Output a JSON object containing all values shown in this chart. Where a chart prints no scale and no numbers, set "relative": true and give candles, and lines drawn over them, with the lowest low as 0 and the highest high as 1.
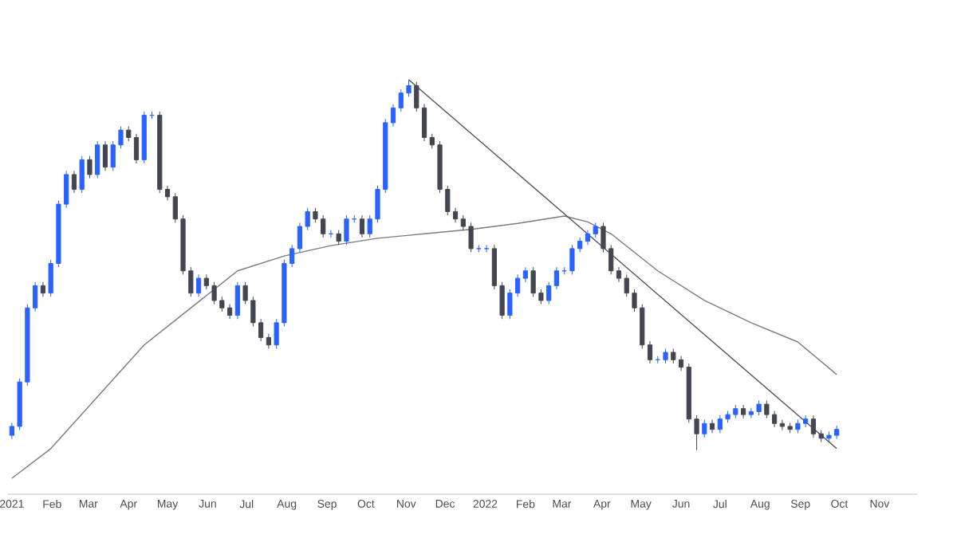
{
  "chart_data": {
    "type": "candlestick",
    "relative": true,
    "colors": [
      "#2962ff",
      "#2962ff",
      "#2962ff",
      "#2962ff",
      "#434651",
      "#2962ff",
      "#2962ff",
      "#2962ff",
      "#434651",
      "#2962ff",
      "#434651",
      "#2962ff",
      "#434651",
      "#2962ff",
      "#2962ff",
      "#434651",
      "#434651",
      "#2962ff",
      "#2962ff",
      "#434651",
      "#434651",
      "#434651",
      "#434651",
      "#434651",
      "#2962ff",
      "#434651",
      "#434651",
      "#434651",
      "#434651",
      "#2962ff",
      "#434651",
      "#434651",
      "#434651",
      "#434651",
      "#2962ff",
      "#2962ff",
      "#2962ff",
      "#2962ff",
      "#2962ff",
      "#434651",
      "#434651",
      "#2962ff",
      "#434651",
      "#2962ff",
      "#2962ff",
      "#434651",
      "#2962ff",
      "#2962ff",
      "#2962ff",
      "#2962ff",
      "#2962ff",
      "#2962ff",
      "#434651",
      "#434651",
      "#434651",
      "#434651",
      "#434651",
      "#434651",
      "#434651",
      "#434651",
      "#2962ff",
      "#2962ff",
      "#434651",
      "#434651",
      "#2962ff",
      "#2962ff",
      "#2962ff",
      "#434651",
      "#434651",
      "#2962ff",
      "#2962ff",
      "#2962ff",
      "#2962ff",
      "#2962ff",
      "#2962ff",
      "#2962ff",
      "#434651",
      "#434651",
      "#434651",
      "#434651",
      "#434651",
      "#434651",
      "#434651",
      "#2962ff",
      "#2962ff",
      "#434651",
      "#434651",
      "#434651",
      "#434651",
      "#2962ff",
      "#434651",
      "#2962ff",
      "#2962ff",
      "#2962ff",
      "#434651",
      "#2962ff",
      "#2962ff",
      "#434651",
      "#434651",
      "#434651",
      "#434651",
      "#2962ff",
      "#2962ff",
      "#434651",
      "#434651",
      "#2962ff",
      "#2962ff"
    ],
    "xlim": [
      "2020-12-29",
      "2022-11-30"
    ],
    "xticks": [
      {
        "value": "2021-01-01",
        "label": "2021"
      },
      {
        "value": "2021-02-01",
        "label": "Feb"
      },
      {
        "value": "2021-03-01",
        "label": "Mar"
      },
      {
        "value": "2021-04-01",
        "label": "Apr"
      },
      {
        "value": "2021-05-01",
        "label": "May"
      },
      {
        "value": "2021-06-01",
        "label": "Jun"
      },
      {
        "value": "2021-07-01",
        "label": "Jul"
      },
      {
        "value": "2021-08-01",
        "label": "Aug"
      },
      {
        "value": "2021-09-01",
        "label": "Sep"
      },
      {
        "value": "2021-10-01",
        "label": "Oct"
      },
      {
        "value": "2021-11-01",
        "label": "Nov"
      },
      {
        "value": "2021-12-01",
        "label": "Dec"
      },
      {
        "value": "2022-01-01",
        "label": "2022"
      },
      {
        "value": "2022-02-01",
        "label": "Feb"
      },
      {
        "value": "2022-03-01",
        "label": "Mar"
      },
      {
        "value": "2022-04-01",
        "label": "Apr"
      },
      {
        "value": "2022-05-01",
        "label": "May"
      },
      {
        "value": "2022-06-01",
        "label": "Jun"
      },
      {
        "value": "2022-07-01",
        "label": "Jul"
      },
      {
        "value": "2022-08-01",
        "label": "Aug"
      },
      {
        "value": "2022-09-01",
        "label": "Sep"
      },
      {
        "value": "2022-10-01",
        "label": "Oct"
      },
      {
        "value": "2022-11-01",
        "label": "Nov"
      }
    ],
    "x": [
      "2021-01-01",
      "2021-01-07",
      "2021-01-13",
      "2021-01-19",
      "2021-01-25",
      "2021-01-31",
      "2021-02-06",
      "2021-02-12",
      "2021-02-18",
      "2021-02-24",
      "2021-03-02",
      "2021-03-08",
      "2021-03-14",
      "2021-03-20",
      "2021-03-26",
      "2021-04-01",
      "2021-04-07",
      "2021-04-13",
      "2021-04-19",
      "2021-04-25",
      "2021-05-01",
      "2021-05-07",
      "2021-05-13",
      "2021-05-19",
      "2021-05-25",
      "2021-05-31",
      "2021-06-06",
      "2021-06-12",
      "2021-06-18",
      "2021-06-24",
      "2021-06-30",
      "2021-07-06",
      "2021-07-12",
      "2021-07-18",
      "2021-07-24",
      "2021-07-30",
      "2021-08-05",
      "2021-08-11",
      "2021-08-17",
      "2021-08-23",
      "2021-08-29",
      "2021-09-04",
      "2021-09-10",
      "2021-09-16",
      "2021-09-22",
      "2021-09-28",
      "2021-10-04",
      "2021-10-10",
      "2021-10-16",
      "2021-10-22",
      "2021-10-28",
      "2021-11-03",
      "2021-11-09",
      "2021-11-15",
      "2021-11-21",
      "2021-11-27",
      "2021-12-03",
      "2021-12-09",
      "2021-12-15",
      "2021-12-21",
      "2021-12-27",
      "2022-01-02",
      "2022-01-08",
      "2022-01-14",
      "2022-01-20",
      "2022-01-26",
      "2022-02-01",
      "2022-02-07",
      "2022-02-13",
      "2022-02-19",
      "2022-02-25",
      "2022-03-03",
      "2022-03-09",
      "2022-03-15",
      "2022-03-21",
      "2022-03-27",
      "2022-04-02",
      "2022-04-08",
      "2022-04-14",
      "2022-04-20",
      "2022-04-26",
      "2022-05-02",
      "2022-05-08",
      "2022-05-14",
      "2022-05-20",
      "2022-05-26",
      "2022-06-01",
      "2022-06-07",
      "2022-06-13",
      "2022-06-19",
      "2022-06-25",
      "2022-07-01",
      "2022-07-07",
      "2022-07-13",
      "2022-07-19",
      "2022-07-25",
      "2022-07-31",
      "2022-08-06",
      "2022-08-12",
      "2022-08-18",
      "2022-08-24",
      "2022-08-30",
      "2022-09-05",
      "2022-09-11",
      "2022-09-17",
      "2022-09-23",
      "2022-09-29"
    ],
    "ohlc": [
      [
        0.04,
        0.074,
        0.03,
        0.064
      ],
      [
        0.064,
        0.194,
        0.054,
        0.184
      ],
      [
        0.184,
        0.394,
        0.174,
        0.384
      ],
      [
        0.384,
        0.454,
        0.374,
        0.444
      ],
      [
        0.444,
        0.454,
        0.414,
        0.424
      ],
      [
        0.424,
        0.514,
        0.414,
        0.504
      ],
      [
        0.504,
        0.674,
        0.494,
        0.664
      ],
      [
        0.664,
        0.754,
        0.654,
        0.744
      ],
      [
        0.744,
        0.754,
        0.694,
        0.704
      ],
      [
        0.704,
        0.794,
        0.694,
        0.784
      ],
      [
        0.784,
        0.794,
        0.734,
        0.744
      ],
      [
        0.744,
        0.834,
        0.734,
        0.824
      ],
      [
        0.824,
        0.834,
        0.754,
        0.764
      ],
      [
        0.764,
        0.834,
        0.754,
        0.824
      ],
      [
        0.824,
        0.874,
        0.814,
        0.864
      ],
      [
        0.864,
        0.874,
        0.834,
        0.844
      ],
      [
        0.844,
        0.854,
        0.774,
        0.784
      ],
      [
        0.784,
        0.914,
        0.774,
        0.904
      ],
      [
        0.904,
        0.914,
        0.894,
        0.904
      ],
      [
        0.904,
        0.914,
        0.694,
        0.704
      ],
      [
        0.704,
        0.714,
        0.674,
        0.684
      ],
      [
        0.684,
        0.694,
        0.614,
        0.624
      ],
      [
        0.624,
        0.634,
        0.474,
        0.484
      ],
      [
        0.484,
        0.494,
        0.414,
        0.424
      ],
      [
        0.424,
        0.474,
        0.414,
        0.464
      ],
      [
        0.464,
        0.474,
        0.434,
        0.444
      ],
      [
        0.444,
        0.454,
        0.394,
        0.404
      ],
      [
        0.404,
        0.414,
        0.374,
        0.384
      ],
      [
        0.384,
        0.394,
        0.354,
        0.364
      ],
      [
        0.364,
        0.454,
        0.354,
        0.444
      ],
      [
        0.444,
        0.454,
        0.394,
        0.404
      ],
      [
        0.404,
        0.414,
        0.334,
        0.344
      ],
      [
        0.344,
        0.354,
        0.294,
        0.304
      ],
      [
        0.304,
        0.314,
        0.274,
        0.284
      ],
      [
        0.284,
        0.354,
        0.274,
        0.344
      ],
      [
        0.344,
        0.514,
        0.334,
        0.504
      ],
      [
        0.504,
        0.554,
        0.494,
        0.544
      ],
      [
        0.544,
        0.614,
        0.534,
        0.604
      ],
      [
        0.604,
        0.654,
        0.594,
        0.644
      ],
      [
        0.644,
        0.654,
        0.614,
        0.624
      ],
      [
        0.624,
        0.634,
        0.574,
        0.584
      ],
      [
        0.584,
        0.594,
        0.574,
        0.584
      ],
      [
        0.584,
        0.594,
        0.554,
        0.564
      ],
      [
        0.564,
        0.634,
        0.554,
        0.624
      ],
      [
        0.624,
        0.634,
        0.614,
        0.624
      ],
      [
        0.624,
        0.634,
        0.574,
        0.584
      ],
      [
        0.584,
        0.634,
        0.574,
        0.624
      ],
      [
        0.624,
        0.714,
        0.614,
        0.704
      ],
      [
        0.704,
        0.894,
        0.694,
        0.884
      ],
      [
        0.884,
        0.934,
        0.874,
        0.924
      ],
      [
        0.924,
        0.974,
        0.914,
        0.964
      ],
      [
        0.964,
        1.0,
        0.954,
        0.984
      ],
      [
        0.984,
        0.994,
        0.914,
        0.924
      ],
      [
        0.924,
        0.934,
        0.834,
        0.844
      ],
      [
        0.844,
        0.854,
        0.814,
        0.824
      ],
      [
        0.824,
        0.834,
        0.694,
        0.704
      ],
      [
        0.704,
        0.714,
        0.634,
        0.644
      ],
      [
        0.644,
        0.654,
        0.614,
        0.624
      ],
      [
        0.624,
        0.634,
        0.594,
        0.604
      ],
      [
        0.604,
        0.614,
        0.534,
        0.544
      ],
      [
        0.544,
        0.554,
        0.534,
        0.544
      ],
      [
        0.544,
        0.554,
        0.534,
        0.544
      ],
      [
        0.544,
        0.554,
        0.434,
        0.444
      ],
      [
        0.444,
        0.454,
        0.354,
        0.364
      ],
      [
        0.364,
        0.434,
        0.354,
        0.424
      ],
      [
        0.424,
        0.474,
        0.414,
        0.464
      ],
      [
        0.464,
        0.494,
        0.454,
        0.484
      ],
      [
        0.484,
        0.494,
        0.414,
        0.424
      ],
      [
        0.424,
        0.434,
        0.394,
        0.404
      ],
      [
        0.404,
        0.454,
        0.394,
        0.444
      ],
      [
        0.444,
        0.494,
        0.434,
        0.484
      ],
      [
        0.484,
        0.494,
        0.474,
        0.484
      ],
      [
        0.484,
        0.554,
        0.474,
        0.544
      ],
      [
        0.544,
        0.574,
        0.534,
        0.564
      ],
      [
        0.564,
        0.594,
        0.554,
        0.584
      ],
      [
        0.584,
        0.614,
        0.574,
        0.604
      ],
      [
        0.604,
        0.614,
        0.534,
        0.544
      ],
      [
        0.544,
        0.554,
        0.474,
        0.484
      ],
      [
        0.484,
        0.494,
        0.454,
        0.464
      ],
      [
        0.464,
        0.474,
        0.414,
        0.424
      ],
      [
        0.424,
        0.434,
        0.374,
        0.384
      ],
      [
        0.384,
        0.394,
        0.274,
        0.284
      ],
      [
        0.284,
        0.294,
        0.234,
        0.244
      ],
      [
        0.244,
        0.254,
        0.234,
        0.244
      ],
      [
        0.244,
        0.274,
        0.234,
        0.264
      ],
      [
        0.264,
        0.274,
        0.234,
        0.244
      ],
      [
        0.244,
        0.254,
        0.214,
        0.224
      ],
      [
        0.224,
        0.234,
        0.074,
        0.084
      ],
      [
        0.084,
        0.094,
        0.0,
        0.044
      ],
      [
        0.044,
        0.082,
        0.034,
        0.072
      ],
      [
        0.072,
        0.082,
        0.046,
        0.056
      ],
      [
        0.056,
        0.094,
        0.046,
        0.084
      ],
      [
        0.084,
        0.106,
        0.074,
        0.096
      ],
      [
        0.096,
        0.122,
        0.086,
        0.112
      ],
      [
        0.112,
        0.122,
        0.086,
        0.096
      ],
      [
        0.096,
        0.114,
        0.086,
        0.104
      ],
      [
        0.104,
        0.134,
        0.094,
        0.124
      ],
      [
        0.124,
        0.134,
        0.086,
        0.096
      ],
      [
        0.096,
        0.106,
        0.062,
        0.072
      ],
      [
        0.072,
        0.082,
        0.054,
        0.064
      ],
      [
        0.064,
        0.074,
        0.046,
        0.056
      ],
      [
        0.056,
        0.082,
        0.046,
        0.072
      ],
      [
        0.072,
        0.094,
        0.062,
        0.084
      ],
      [
        0.084,
        0.094,
        0.034,
        0.044
      ],
      [
        0.044,
        0.054,
        0.022,
        0.032
      ],
      [
        0.032,
        0.05,
        0.022,
        0.04
      ],
      [
        0.04,
        0.066,
        0.03,
        0.056
      ]
    ],
    "series": [
      {
        "type": "line",
        "color": "#787b86",
        "line_style": "solid",
        "x": [
          "2021-01-01",
          "2021-01-31",
          "2021-03-08",
          "2021-04-13",
          "2021-05-19",
          "2021-06-24",
          "2021-07-30",
          "2021-09-04",
          "2021-10-10",
          "2021-11-15",
          "2021-12-21",
          "2022-01-26",
          "2022-03-03",
          "2022-03-21",
          "2022-04-08",
          "2022-05-14",
          "2022-06-19",
          "2022-07-25",
          "2022-08-30",
          "2022-09-29"
        ],
        "values": [
          -0.076,
          0.004,
          0.144,
          0.284,
          0.384,
          0.484,
          0.524,
          0.552,
          0.572,
          0.584,
          0.596,
          0.612,
          0.632,
          0.616,
          0.584,
          0.484,
          0.404,
          0.344,
          0.292,
          0.204
        ]
      },
      {
        "type": "line",
        "color": "#50535e",
        "line_style": "solid",
        "x": [
          "2021-11-03",
          "2022-09-29"
        ],
        "values": [
          1.0,
          0.004
        ]
      }
    ]
  }
}
